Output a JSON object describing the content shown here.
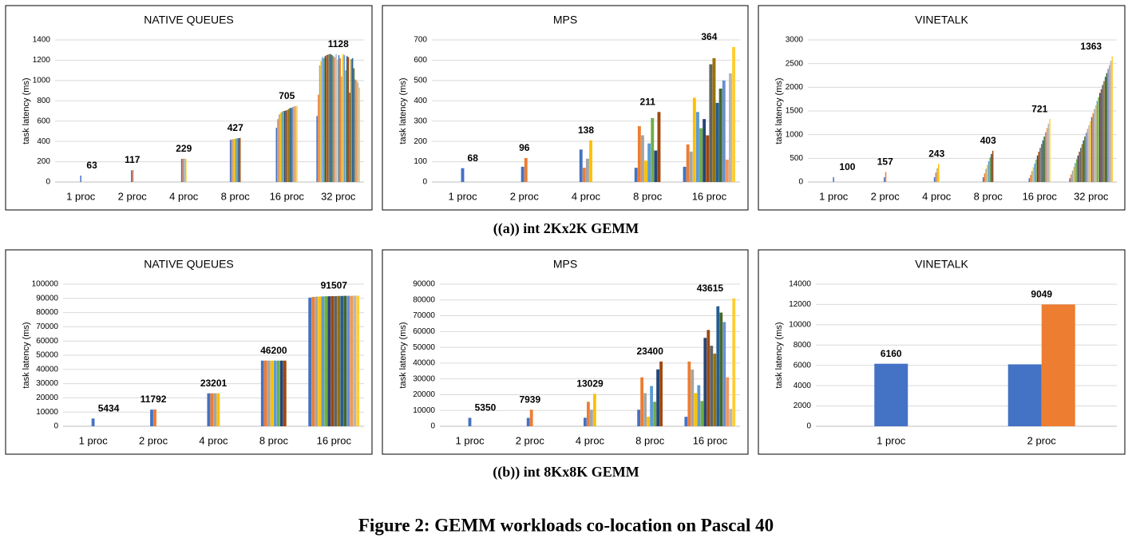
{
  "palette": [
    "#4472c4",
    "#ed7d31",
    "#a5a5a5",
    "#ffc000",
    "#5b9bd5",
    "#70ad47",
    "#264478",
    "#9e480e",
    "#636363",
    "#997300",
    "#255e91",
    "#43682b",
    "#698ed0",
    "#f1975a",
    "#b7b7b7",
    "#ffcd33"
  ],
  "captions": [
    "((a)) int 2Kx2K GEMM",
    "((b)) int 8Kx8K GEMM"
  ],
  "figure_caption": "Figure 2: GEMM workloads co-location on Pascal 40",
  "chart_data": [
    {
      "type": "bar",
      "title": "NATIVE QUEUES",
      "y_label": "task latency (ms)",
      "grid": true,
      "categories": [
        "1 proc",
        "2 proc",
        "4 proc",
        "8 proc",
        "16 proc",
        "32 proc"
      ],
      "ylim": [
        0,
        1400
      ],
      "yticks": [
        0,
        200,
        400,
        600,
        800,
        1000,
        1200,
        1400
      ],
      "groups": [
        [
          63
        ],
        [
          115,
          118
        ],
        [
          228,
          229,
          230,
          229
        ],
        [
          415,
          420,
          422,
          425,
          428,
          430,
          432,
          434
        ],
        [
          535,
          620,
          665,
          680,
          690,
          700,
          700,
          705,
          710,
          720,
          730,
          730,
          740,
          745,
          750,
          750
        ],
        [
          650,
          860,
          1150,
          1190,
          1230,
          1220,
          1240,
          1250,
          1255,
          1260,
          1260,
          1250,
          1240,
          1230,
          1260,
          1200,
          1250,
          1220,
          1040,
          1260,
          1250,
          1100,
          1240,
          1230,
          880,
          1210,
          1220,
          1120,
          1010,
          1000,
          980,
          930
        ]
      ],
      "annotations": [
        63,
        117,
        229,
        427,
        705,
        1128
      ]
    },
    {
      "type": "bar",
      "title": "MPS",
      "y_label": "task latency (ms)",
      "grid": true,
      "categories": [
        "1 proc",
        "2 proc",
        "4 proc",
        "8 proc",
        "16 proc"
      ],
      "ylim": [
        0,
        700
      ],
      "yticks": [
        0,
        100,
        200,
        300,
        400,
        500,
        600,
        700
      ],
      "groups": [
        [
          68
        ],
        [
          75,
          118
        ],
        [
          160,
          70,
          115,
          205
        ],
        [
          70,
          275,
          230,
          105,
          190,
          315,
          155,
          345
        ],
        [
          75,
          185,
          150,
          415,
          345,
          265,
          310,
          230,
          580,
          610,
          390,
          460,
          500,
          110,
          535,
          665
        ]
      ],
      "annotations": [
        68,
        96,
        138,
        211,
        364
      ]
    },
    {
      "type": "bar",
      "title": "VINETALK",
      "y_label": "task latency (ms)",
      "grid": true,
      "categories": [
        "1 proc",
        "2 proc",
        "4 proc",
        "8 proc",
        "16 proc",
        "32 proc"
      ],
      "ylim": [
        0,
        3000
      ],
      "yticks": [
        0,
        500,
        1000,
        1500,
        2000,
        2500,
        3000
      ],
      "groups": [
        [
          100
        ],
        [
          100,
          210
        ],
        [
          100,
          200,
          290,
          380
        ],
        [
          100,
          180,
          280,
          360,
          440,
          520,
          590,
          660
        ],
        [
          80,
          150,
          230,
          310,
          390,
          470,
          560,
          640,
          720,
          800,
          880,
          960,
          1050,
          1140,
          1230,
          1330
        ],
        [
          80,
          160,
          240,
          320,
          400,
          480,
          560,
          640,
          720,
          800,
          880,
          960,
          1040,
          1120,
          1200,
          1280,
          1370,
          1450,
          1540,
          1620,
          1710,
          1790,
          1880,
          1960,
          2050,
          2130,
          2220,
          2300,
          2390,
          2470,
          2560,
          2650
        ]
      ],
      "annotations": [
        100,
        157,
        243,
        403,
        721,
        1363
      ]
    },
    {
      "type": "bar",
      "title": "NATIVE QUEUES",
      "y_label": "task latency (ms)",
      "grid": true,
      "categories": [
        "1 proc",
        "2 proc",
        "4 proc",
        "8 proc",
        "16 proc"
      ],
      "ylim": [
        0,
        100000
      ],
      "yticks": [
        0,
        10000,
        20000,
        30000,
        40000,
        50000,
        60000,
        70000,
        80000,
        90000,
        100000
      ],
      "groups": [
        [
          5434
        ],
        [
          11700,
          11800
        ],
        [
          23200,
          23200,
          23200,
          23200
        ],
        [
          46200,
          46200,
          46200,
          46200,
          46200,
          46200,
          46200,
          46200
        ],
        [
          90500,
          91000,
          91200,
          91300,
          91400,
          91500,
          91500,
          91600,
          91600,
          91700,
          91700,
          91800,
          91800,
          91800,
          91900,
          91900
        ]
      ],
      "annotations": [
        5434,
        11792,
        23201,
        46200,
        91507
      ]
    },
    {
      "type": "bar",
      "title": "MPS",
      "y_label": "task latency (ms)",
      "grid": true,
      "categories": [
        "1 proc",
        "2 proc",
        "4 proc",
        "8 proc",
        "16 proc"
      ],
      "ylim": [
        0,
        90000
      ],
      "yticks": [
        0,
        10000,
        20000,
        30000,
        40000,
        50000,
        60000,
        70000,
        80000,
        90000
      ],
      "groups": [
        [
          5350
        ],
        [
          5300,
          10500
        ],
        [
          5400,
          15500,
          10500,
          20500
        ],
        [
          10500,
          31000,
          21000,
          6000,
          25500,
          15500,
          36000,
          41000
        ],
        [
          6000,
          41000,
          36000,
          21000,
          26000,
          16000,
          56000,
          61000,
          51000,
          46000,
          76000,
          72000,
          66000,
          31000,
          11000,
          81000
        ]
      ],
      "annotations": [
        5350,
        7939,
        13029,
        23400,
        43615
      ]
    },
    {
      "type": "bar",
      "title": "VINETALK",
      "y_label": "task latency (ms)",
      "grid": true,
      "categories": [
        "1 proc",
        "2 proc"
      ],
      "ylim": [
        0,
        14000
      ],
      "yticks": [
        0,
        2000,
        4000,
        6000,
        8000,
        10000,
        12000,
        14000
      ],
      "groups": [
        [
          6160
        ],
        [
          6100,
          12000
        ]
      ],
      "annotations": [
        6160,
        9049
      ]
    }
  ]
}
